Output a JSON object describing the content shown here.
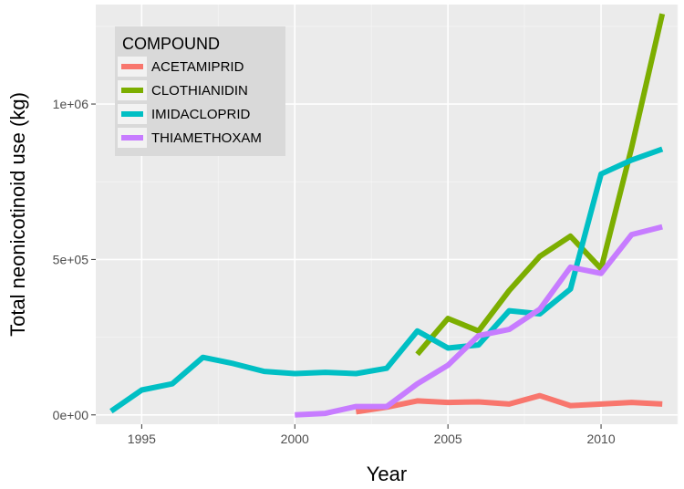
{
  "chart_data": {
    "type": "line",
    "title": "",
    "xlabel": "Year",
    "ylabel": "Total neonicotinoid use (kg)",
    "xlim": [
      1993.5,
      2012.5
    ],
    "ylim": [
      -30000,
      1320000
    ],
    "x_ticks": [
      1995,
      2000,
      2005,
      2010
    ],
    "x_tick_labels": [
      "1995",
      "2000",
      "2005",
      "2010"
    ],
    "y_ticks": [
      0,
      500000,
      1000000
    ],
    "y_tick_labels": [
      "0e+00",
      "5e+05",
      "1e+06"
    ],
    "grid": true,
    "legend": {
      "title": "COMPOUND",
      "placement": "top-left"
    },
    "series": [
      {
        "name": "ACETAMIPRID",
        "color": "#F8766D",
        "points": [
          [
            2002,
            10000
          ],
          [
            2003,
            25000
          ],
          [
            2004,
            45000
          ],
          [
            2005,
            40000
          ],
          [
            2006,
            42000
          ],
          [
            2007,
            35000
          ],
          [
            2008,
            62000
          ],
          [
            2009,
            30000
          ],
          [
            2010,
            35000
          ],
          [
            2011,
            40000
          ],
          [
            2012,
            35000
          ]
        ]
      },
      {
        "name": "CLOTHIANIDIN",
        "color": "#7CAE00",
        "points": [
          [
            2004,
            195000
          ],
          [
            2005,
            310000
          ],
          [
            2006,
            270000
          ],
          [
            2007,
            400000
          ],
          [
            2008,
            510000
          ],
          [
            2009,
            575000
          ],
          [
            2010,
            470000
          ],
          [
            2011,
            860000
          ],
          [
            2012,
            1290000
          ]
        ]
      },
      {
        "name": "IMIDACLOPRID",
        "color": "#00BFC4",
        "points": [
          [
            1994,
            12000
          ],
          [
            1995,
            80000
          ],
          [
            1996,
            100000
          ],
          [
            1997,
            185000
          ],
          [
            1998,
            165000
          ],
          [
            1999,
            140000
          ],
          [
            2000,
            133000
          ],
          [
            2001,
            137000
          ],
          [
            2002,
            133000
          ],
          [
            2003,
            150000
          ],
          [
            2004,
            270000
          ],
          [
            2005,
            215000
          ],
          [
            2006,
            225000
          ],
          [
            2007,
            335000
          ],
          [
            2008,
            325000
          ],
          [
            2009,
            405000
          ],
          [
            2010,
            775000
          ],
          [
            2011,
            820000
          ],
          [
            2012,
            855000
          ]
        ]
      },
      {
        "name": "THIAMETHOXAM",
        "color": "#C77CFF",
        "points": [
          [
            2000,
            0
          ],
          [
            2001,
            5000
          ],
          [
            2002,
            27000
          ],
          [
            2003,
            27000
          ],
          [
            2004,
            100000
          ],
          [
            2005,
            160000
          ],
          [
            2006,
            255000
          ],
          [
            2007,
            275000
          ],
          [
            2008,
            340000
          ],
          [
            2009,
            475000
          ],
          [
            2010,
            455000
          ],
          [
            2011,
            580000
          ],
          [
            2012,
            605000
          ]
        ]
      }
    ]
  }
}
